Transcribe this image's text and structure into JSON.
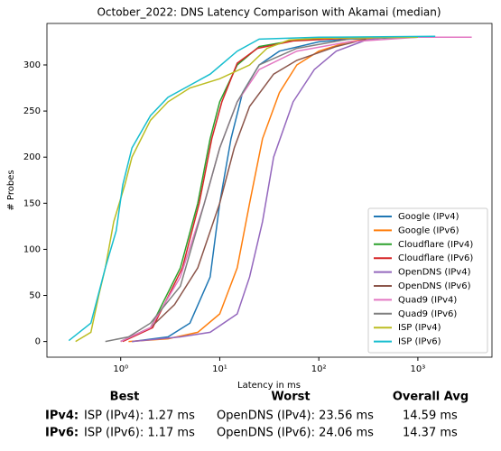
{
  "chart_data": {
    "type": "line",
    "title": "October_2022: DNS Latency Comparison with Akamai (median)",
    "xlabel": "Latency in ms",
    "ylabel": "# Probes",
    "xscale": "log",
    "xlim": [
      0.18,
      5600
    ],
    "ylim": [
      -17,
      345
    ],
    "xticks": [
      {
        "value": 1,
        "label": "10⁰"
      },
      {
        "value": 10,
        "label": "10¹"
      },
      {
        "value": 100,
        "label": "10²"
      },
      {
        "value": 1000,
        "label": "10³"
      }
    ],
    "yticks": [
      0,
      50,
      100,
      150,
      200,
      250,
      300
    ],
    "legend": "lower right",
    "series": [
      {
        "name": "Google (IPv4)",
        "color": "#1f77b4",
        "x": [
          1.3,
          3,
          5,
          8,
          10,
          13,
          17,
          25,
          40,
          100,
          200,
          1000
        ],
        "values": [
          0,
          5,
          20,
          70,
          150,
          220,
          270,
          300,
          315,
          325,
          328,
          330
        ]
      },
      {
        "name": "Google (IPv6)",
        "color": "#ff7f0e",
        "x": [
          1.2,
          3,
          6,
          10,
          15,
          20,
          27,
          40,
          60,
          100,
          200,
          400
        ],
        "values": [
          0,
          3,
          10,
          30,
          80,
          150,
          220,
          270,
          300,
          315,
          325,
          330
        ]
      },
      {
        "name": "Cloudflare (IPv4)",
        "color": "#2ca02c",
        "x": [
          1,
          2,
          4,
          6,
          8,
          10,
          15,
          25,
          60,
          300
        ],
        "values": [
          0,
          15,
          80,
          150,
          220,
          260,
          300,
          320,
          327,
          330
        ]
      },
      {
        "name": "Cloudflare (IPv6)",
        "color": "#d62728",
        "x": [
          1.05,
          2.1,
          4.2,
          6.2,
          8.3,
          10.5,
          15,
          24,
          55,
          300
        ],
        "values": [
          0,
          15,
          80,
          150,
          220,
          260,
          302,
          318,
          326,
          330
        ]
      },
      {
        "name": "OpenDNS (IPv4)",
        "color": "#9467bd",
        "x": [
          1.3,
          4,
          8,
          15,
          20,
          27,
          35,
          55,
          90,
          150,
          300,
          500
        ],
        "values": [
          0,
          5,
          10,
          30,
          70,
          130,
          200,
          260,
          295,
          315,
          327,
          330
        ]
      },
      {
        "name": "OpenDNS (IPv6)",
        "color": "#8c564b",
        "x": [
          1,
          2,
          3.5,
          6,
          10,
          14,
          20,
          35,
          60,
          150,
          300
        ],
        "values": [
          0,
          15,
          40,
          80,
          150,
          210,
          255,
          290,
          305,
          320,
          328
        ]
      },
      {
        "name": "Quad9 (IPv4)",
        "color": "#e377c2",
        "x": [
          1,
          2,
          4,
          7,
          10,
          15,
          25,
          60,
          200,
          1000,
          3500
        ],
        "values": [
          0,
          15,
          70,
          150,
          210,
          260,
          295,
          315,
          325,
          330,
          330
        ]
      },
      {
        "name": "Quad9 (IPv6)",
        "color": "#7f7f7f",
        "x": [
          0.7,
          1.2,
          2,
          4,
          7,
          10,
          15,
          25,
          60,
          200,
          400
        ],
        "values": [
          0,
          5,
          20,
          60,
          150,
          210,
          260,
          300,
          318,
          328,
          330
        ]
      },
      {
        "name": "ISP (IPv4)",
        "color": "#bcbd22",
        "x": [
          0.35,
          0.5,
          0.6,
          0.7,
          0.85,
          1.1,
          1.3,
          2,
          3,
          5,
          10,
          20,
          30,
          50,
          100,
          1000
        ],
        "values": [
          0,
          10,
          50,
          80,
          130,
          170,
          200,
          240,
          260,
          275,
          285,
          300,
          318,
          327,
          329,
          330
        ]
      },
      {
        "name": "ISP (IPv6)",
        "color": "#17becf",
        "x": [
          0.3,
          0.5,
          0.7,
          0.9,
          1.05,
          1.3,
          2,
          3,
          5,
          8,
          15,
          25,
          100,
          1500
        ],
        "values": [
          1,
          20,
          80,
          120,
          170,
          210,
          245,
          265,
          278,
          290,
          315,
          328,
          330,
          331
        ]
      }
    ]
  },
  "table": {
    "headers": [
      "Best",
      "Worst",
      "Overall Avg"
    ],
    "rows": [
      [
        "IPv4:",
        "ISP (IPv4): 1.27 ms",
        "OpenDNS (IPv4): 23.56 ms",
        "14.59 ms"
      ],
      [
        "IPv6:",
        "ISP (IPv6): 1.17 ms",
        "OpenDNS (IPv6): 24.06 ms",
        "14.37 ms"
      ]
    ]
  }
}
